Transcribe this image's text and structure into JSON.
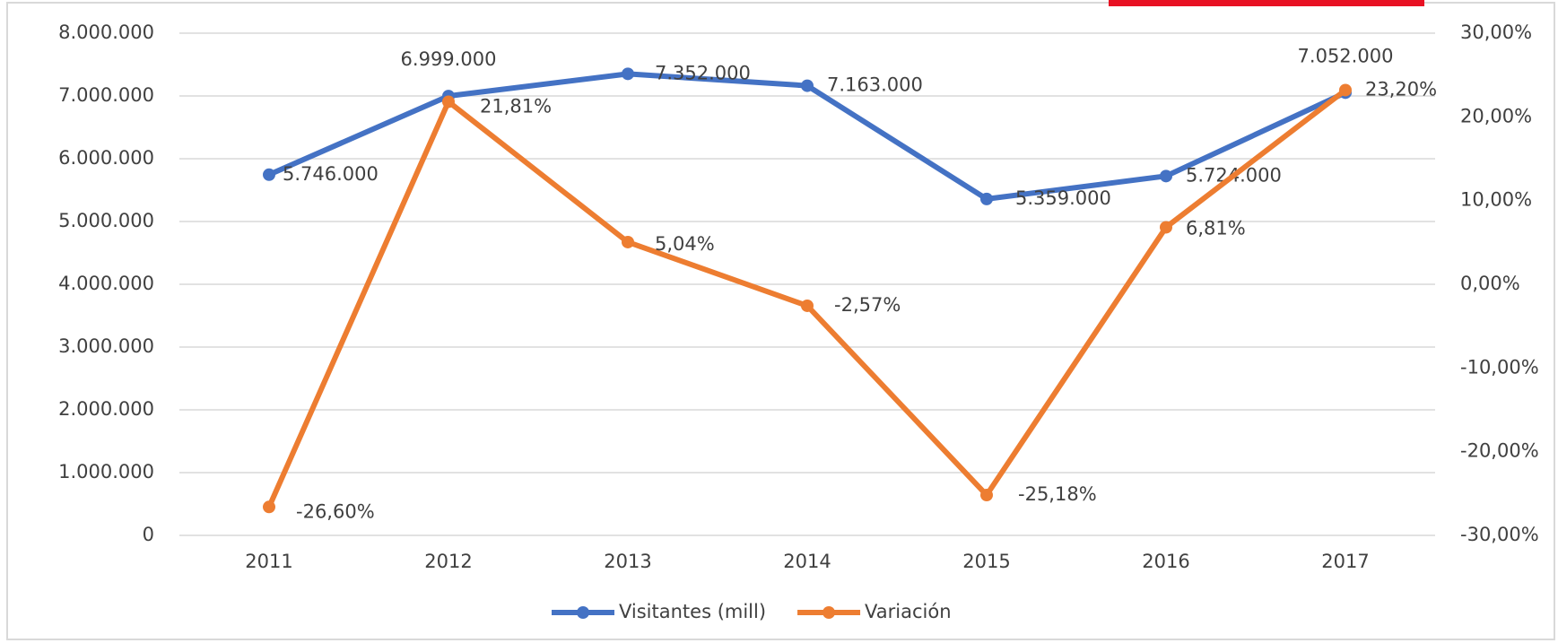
{
  "chart_data": {
    "type": "line",
    "categories": [
      "2011",
      "2012",
      "2013",
      "2014",
      "2015",
      "2016",
      "2017"
    ],
    "series": [
      {
        "name": "Visitantes (mill)",
        "color": "#4472c4",
        "values": [
          5746000,
          6999000,
          7352000,
          7163000,
          5359000,
          5724000,
          7052000
        ],
        "value_labels": [
          "5.746.000",
          "6.999.000",
          "7.352.000",
          "7.163.000",
          "5.359.000",
          "5.724.000",
          "7.052.000"
        ]
      },
      {
        "name": "Variación",
        "color": "#ed7d31",
        "axis": "y2",
        "values": [
          -26.6,
          21.81,
          5.04,
          -2.57,
          -25.18,
          6.81,
          23.2
        ],
        "value_labels": [
          "-26,60%",
          "21,81%",
          "5,04%",
          "-2,57%",
          "-25,18%",
          "6,81%",
          "23,20%"
        ]
      }
    ],
    "ylim": [
      0,
      8000000
    ],
    "yticks": [
      0,
      {
        "value": 1000000,
        "label": "1.000.000"
      },
      {
        "value": 2000000,
        "label": "2.000.000"
      },
      {
        "value": 3000000,
        "label": "3.000.000"
      },
      {
        "value": 4000000,
        "label": "4.000.000"
      },
      {
        "value": 5000000,
        "label": "5.000.000"
      },
      {
        "value": 6000000,
        "label": "6.000.000"
      },
      {
        "value": 7000000,
        "label": "7.000.000"
      },
      {
        "value": 8000000,
        "label": "8.000.000"
      }
    ],
    "y2lim": [
      -30,
      30
    ],
    "y2ticks": [
      {
        "value": -30,
        "label": "-30,00%"
      },
      {
        "value": -20,
        "label": "-20,00%"
      },
      {
        "value": -10,
        "label": "-10,00%"
      },
      {
        "value": 0,
        "label": "0,00%"
      },
      {
        "value": 10,
        "label": "10,00%"
      },
      {
        "value": 20,
        "label": "20,00%"
      },
      {
        "value": 30,
        "label": "30,00%"
      }
    ],
    "grid": true,
    "legend": "bottom"
  }
}
